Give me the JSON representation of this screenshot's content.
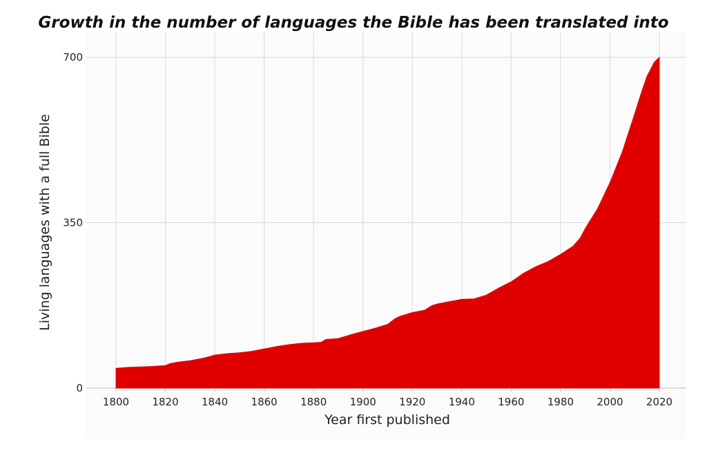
{
  "chart_data": {
    "type": "area",
    "title": "Growth in the number of languages the Bible has been translated into",
    "xlabel": "Year first published",
    "ylabel": "Living languages with a full Bible",
    "xlim": [
      1800,
      2020
    ],
    "ylim": [
      0,
      700
    ],
    "x_ticks": [
      "1800",
      "1820",
      "1840",
      "1860",
      "1880",
      "1900",
      "1920",
      "1940",
      "1960",
      "1980",
      "2000",
      "2020"
    ],
    "y_ticks": [
      "0",
      "350",
      "700"
    ],
    "grid": "vertical lines every 20 years, horizontal lines at y ticks",
    "legend": "none",
    "color": "#e00000",
    "series": [
      {
        "x": [
          1800,
          1802,
          1805,
          1810,
          1815,
          1820,
          1822,
          1825,
          1830,
          1835,
          1838,
          1840,
          1845,
          1850,
          1855,
          1860,
          1865,
          1870,
          1875,
          1880,
          1883,
          1885,
          1890,
          1895,
          1900,
          1905,
          1910,
          1913,
          1915,
          1920,
          1925,
          1928,
          1930,
          1935,
          1940,
          1945,
          1950,
          1955,
          1960,
          1965,
          1970,
          1975,
          1980,
          1985,
          1988,
          1990,
          1995,
          2000,
          2005,
          2010,
          2013,
          2015,
          2018,
          2020
        ],
        "values": [
          42,
          43,
          44,
          45,
          46,
          48,
          52,
          55,
          58,
          63,
          67,
          70,
          73,
          75,
          78,
          83,
          88,
          92,
          95,
          96,
          97,
          103,
          105,
          113,
          120,
          127,
          135,
          147,
          152,
          160,
          165,
          175,
          178,
          183,
          188,
          189,
          197,
          212,
          225,
          243,
          257,
          268,
          283,
          300,
          318,
          338,
          380,
          435,
          500,
          580,
          630,
          660,
          690,
          700
        ]
      }
    ]
  }
}
